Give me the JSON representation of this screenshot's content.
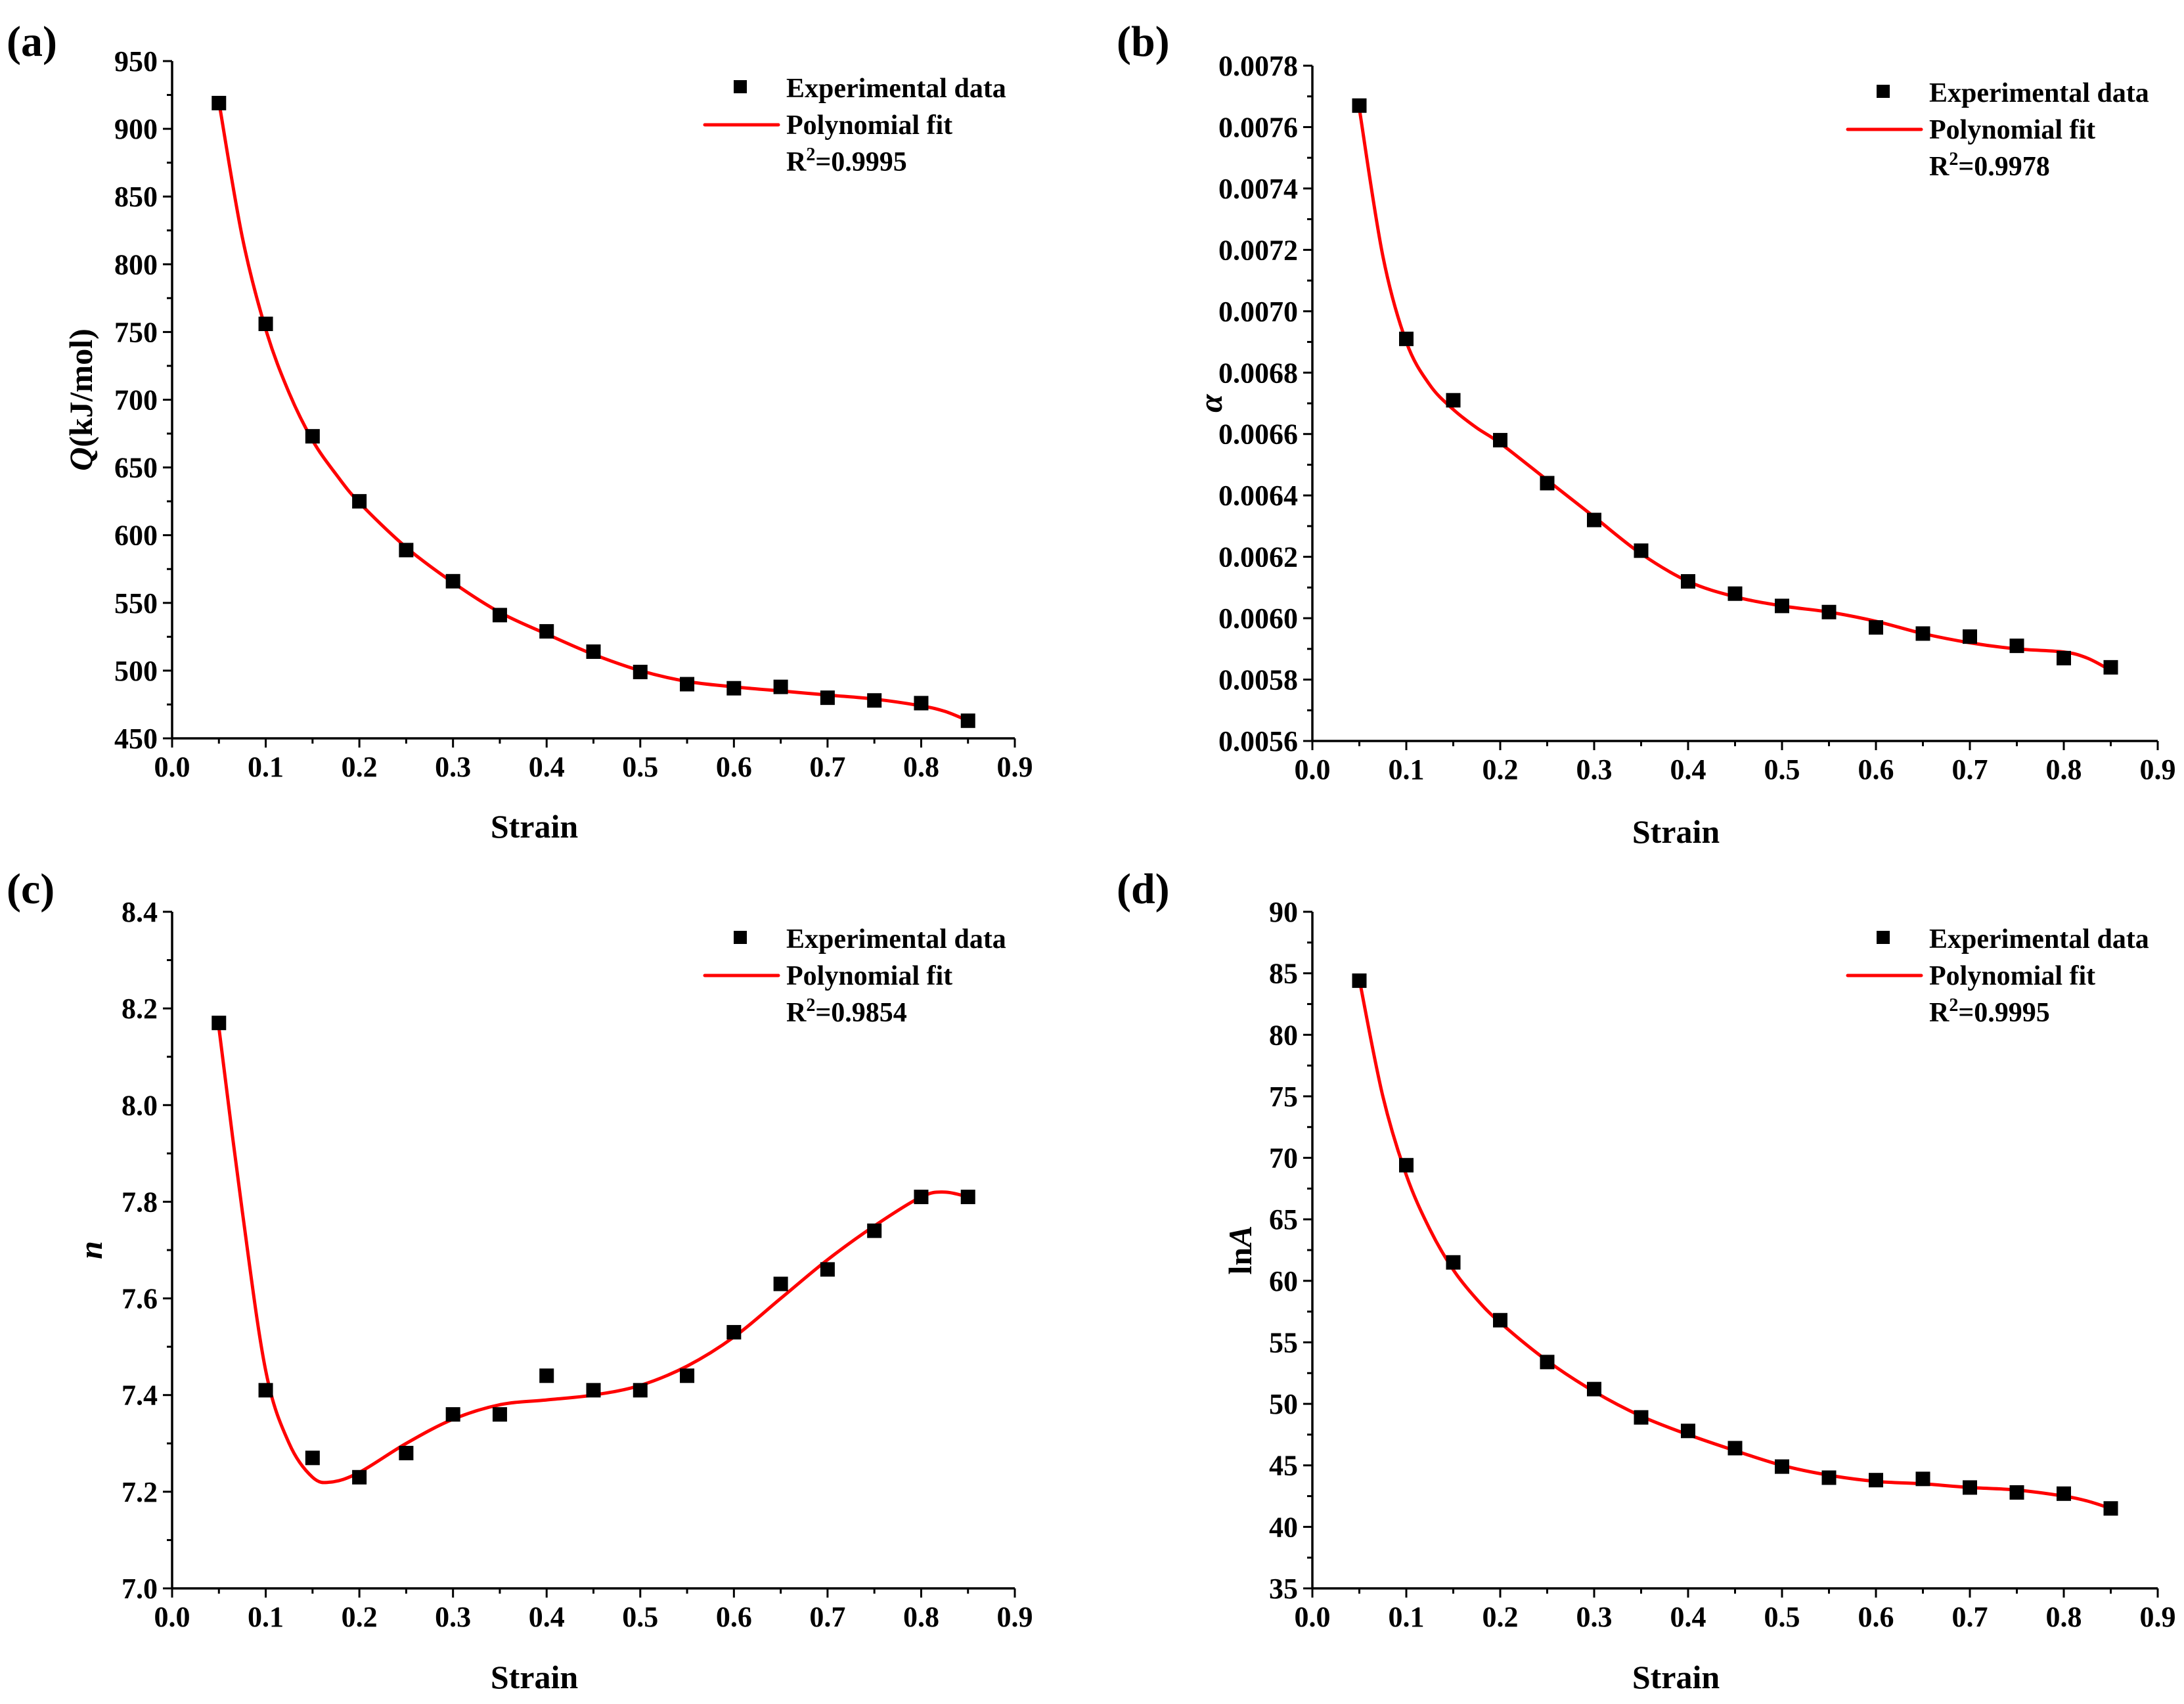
{
  "chart_data": [
    {
      "type": "scatter",
      "panel_label": "(a)",
      "ylabel": {
        "italic": "Q",
        "rest": "(kJ/mol)"
      },
      "xlabel": "Strain",
      "xlim": [
        0.0,
        0.9
      ],
      "ylim": [
        450,
        950
      ],
      "xticks": [
        "0.0",
        "0.1",
        "0.2",
        "0.3",
        "0.4",
        "0.5",
        "0.6",
        "0.7",
        "0.8",
        "0.9"
      ],
      "yticks": [
        "450",
        "500",
        "550",
        "600",
        "650",
        "700",
        "750",
        "800",
        "850",
        "900",
        "950"
      ],
      "ytick_values": [
        450,
        500,
        550,
        600,
        650,
        700,
        750,
        800,
        850,
        900,
        950
      ],
      "legend": {
        "scatter": "Experimental data",
        "line": "Polynomial fit",
        "r2_base": "R",
        "r2_sup": "2",
        "r2_value": "=0.9995",
        "position": "top-right"
      },
      "series": [
        {
          "name": "Experimental data",
          "x": [
            0.05,
            0.1,
            0.15,
            0.2,
            0.25,
            0.3,
            0.35,
            0.4,
            0.45,
            0.5,
            0.55,
            0.6,
            0.65,
            0.7,
            0.75,
            0.8,
            0.85
          ],
          "y": [
            919,
            756,
            673,
            625,
            589,
            566,
            541,
            529,
            514,
            499,
            490,
            487,
            488,
            480,
            478,
            476,
            463
          ]
        },
        {
          "name": "Polynomial fit",
          "x": [
            0.05,
            0.075,
            0.1,
            0.125,
            0.15,
            0.175,
            0.2,
            0.25,
            0.3,
            0.35,
            0.4,
            0.45,
            0.5,
            0.55,
            0.6,
            0.65,
            0.7,
            0.75,
            0.8,
            0.825,
            0.85
          ],
          "y": [
            920,
            820,
            752,
            705,
            670,
            645,
            624,
            591,
            565,
            543,
            527,
            512,
            500,
            492,
            488,
            485,
            482,
            479,
            474,
            470,
            463
          ]
        }
      ]
    },
    {
      "type": "scatter",
      "panel_label": "(b)",
      "ylabel": {
        "italic": "α",
        "rest": ""
      },
      "xlabel": "Strain",
      "xlim": [
        0.0,
        0.9
      ],
      "ylim": [
        0.0056,
        0.0078
      ],
      "xticks": [
        "0.0",
        "0.1",
        "0.2",
        "0.3",
        "0.4",
        "0.5",
        "0.6",
        "0.7",
        "0.8",
        "0.9"
      ],
      "yticks": [
        "0.0056",
        "0.0058",
        "0.0060",
        "0.0062",
        "0.0064",
        "0.0066",
        "0.0068",
        "0.0070",
        "0.0072",
        "0.0074",
        "0.0076",
        "0.0078"
      ],
      "ytick_values": [
        0.0056,
        0.0058,
        0.006,
        0.0062,
        0.0064,
        0.0066,
        0.0068,
        0.007,
        0.0072,
        0.0074,
        0.0076,
        0.0078
      ],
      "legend": {
        "scatter": "Experimental data",
        "line": "Polynomial fit",
        "r2_base": "R",
        "r2_sup": "2",
        "r2_value": "=0.9978",
        "position": "top-right"
      },
      "series": [
        {
          "name": "Experimental data",
          "x": [
            0.05,
            0.1,
            0.15,
            0.2,
            0.25,
            0.3,
            0.35,
            0.4,
            0.45,
            0.5,
            0.55,
            0.6,
            0.65,
            0.7,
            0.75,
            0.8,
            0.85
          ],
          "y": [
            0.00767,
            0.00691,
            0.00671,
            0.00658,
            0.00644,
            0.00632,
            0.00622,
            0.00612,
            0.00608,
            0.00604,
            0.00602,
            0.00597,
            0.00595,
            0.00594,
            0.00591,
            0.00587,
            0.00584
          ]
        },
        {
          "name": "Polynomial fit",
          "x": [
            0.05,
            0.075,
            0.1,
            0.125,
            0.15,
            0.175,
            0.2,
            0.25,
            0.3,
            0.35,
            0.4,
            0.45,
            0.5,
            0.55,
            0.6,
            0.65,
            0.7,
            0.75,
            0.8,
            0.825,
            0.85
          ],
          "y": [
            0.00766,
            0.00718,
            0.0069,
            0.00676,
            0.00668,
            0.00662,
            0.00657,
            0.00645,
            0.00633,
            0.00621,
            0.00612,
            0.00607,
            0.00604,
            0.00602,
            0.00599,
            0.00595,
            0.00592,
            0.0059,
            0.00589,
            0.00587,
            0.00583
          ]
        }
      ]
    },
    {
      "type": "scatter",
      "panel_label": "(c)",
      "ylabel": {
        "italic": "n",
        "rest": ""
      },
      "xlabel": "Strain",
      "xlim": [
        0.0,
        0.9
      ],
      "ylim": [
        7.0,
        8.4
      ],
      "xticks": [
        "0.0",
        "0.1",
        "0.2",
        "0.3",
        "0.4",
        "0.5",
        "0.6",
        "0.7",
        "0.8",
        "0.9"
      ],
      "yticks": [
        "7.0",
        "7.2",
        "7.4",
        "7.6",
        "7.8",
        "8.0",
        "8.2",
        "8.4"
      ],
      "ytick_values": [
        7.0,
        7.2,
        7.4,
        7.6,
        7.8,
        8.0,
        8.2,
        8.4
      ],
      "legend": {
        "scatter": "Experimental data",
        "line": "Polynomial fit",
        "r2_base": "R",
        "r2_sup": "2",
        "r2_value": "=0.9854",
        "position": "top-right"
      },
      "series": [
        {
          "name": "Experimental data",
          "x": [
            0.05,
            0.1,
            0.15,
            0.2,
            0.25,
            0.3,
            0.35,
            0.4,
            0.45,
            0.5,
            0.55,
            0.6,
            0.65,
            0.7,
            0.75,
            0.8,
            0.85
          ],
          "y": [
            8.17,
            7.41,
            7.27,
            7.23,
            7.28,
            7.36,
            7.36,
            7.44,
            7.41,
            7.41,
            7.44,
            7.53,
            7.63,
            7.66,
            7.74,
            7.81,
            7.81
          ]
        },
        {
          "name": "Polynomial fit",
          "x": [
            0.05,
            0.075,
            0.1,
            0.125,
            0.15,
            0.17,
            0.2,
            0.25,
            0.3,
            0.35,
            0.4,
            0.45,
            0.5,
            0.55,
            0.6,
            0.65,
            0.7,
            0.75,
            0.8,
            0.825,
            0.85
          ],
          "y": [
            8.16,
            7.78,
            7.45,
            7.3,
            7.23,
            7.22,
            7.24,
            7.3,
            7.35,
            7.38,
            7.39,
            7.4,
            7.42,
            7.46,
            7.52,
            7.6,
            7.68,
            7.75,
            7.81,
            7.82,
            7.81
          ]
        }
      ]
    },
    {
      "type": "scatter",
      "panel_label": "(d)",
      "ylabel": {
        "italic": "A",
        "rest": "ln"
      },
      "xlabel": "Strain",
      "xlim": [
        0.0,
        0.9
      ],
      "ylim": [
        35,
        90
      ],
      "xticks": [
        "0.0",
        "0.1",
        "0.2",
        "0.3",
        "0.4",
        "0.5",
        "0.6",
        "0.7",
        "0.8",
        "0.9"
      ],
      "yticks": [
        "35",
        "40",
        "45",
        "50",
        "55",
        "60",
        "65",
        "70",
        "75",
        "80",
        "85",
        "90"
      ],
      "ytick_values": [
        35,
        40,
        45,
        50,
        55,
        60,
        65,
        70,
        75,
        80,
        85,
        90
      ],
      "legend": {
        "scatter": "Experimental data",
        "line": "Polynomial fit",
        "r2_base": "R",
        "r2_sup": "2",
        "r2_value": "=0.9995",
        "position": "top-right"
      },
      "series": [
        {
          "name": "Experimental data",
          "x": [
            0.05,
            0.1,
            0.15,
            0.2,
            0.25,
            0.3,
            0.35,
            0.4,
            0.45,
            0.5,
            0.55,
            0.6,
            0.65,
            0.7,
            0.75,
            0.8,
            0.85
          ],
          "y": [
            84.4,
            69.4,
            61.5,
            56.8,
            53.4,
            51.2,
            48.9,
            47.8,
            46.4,
            44.9,
            44.0,
            43.8,
            43.9,
            43.2,
            42.8,
            42.7,
            41.5
          ]
        },
        {
          "name": "Polynomial fit",
          "x": [
            0.05,
            0.075,
            0.1,
            0.125,
            0.15,
            0.175,
            0.2,
            0.25,
            0.3,
            0.35,
            0.4,
            0.45,
            0.5,
            0.55,
            0.6,
            0.65,
            0.7,
            0.75,
            0.8,
            0.825,
            0.85
          ],
          "y": [
            84.5,
            75.0,
            68.6,
            64.2,
            60.9,
            58.5,
            56.6,
            53.5,
            51.0,
            49.0,
            47.5,
            46.2,
            45.0,
            44.2,
            43.7,
            43.5,
            43.2,
            43.0,
            42.5,
            42.1,
            41.5
          ]
        }
      ]
    }
  ],
  "colors": {
    "fit_line": "#ff0000",
    "points": "#000000",
    "axes": "#000000",
    "background": "#ffffff"
  }
}
